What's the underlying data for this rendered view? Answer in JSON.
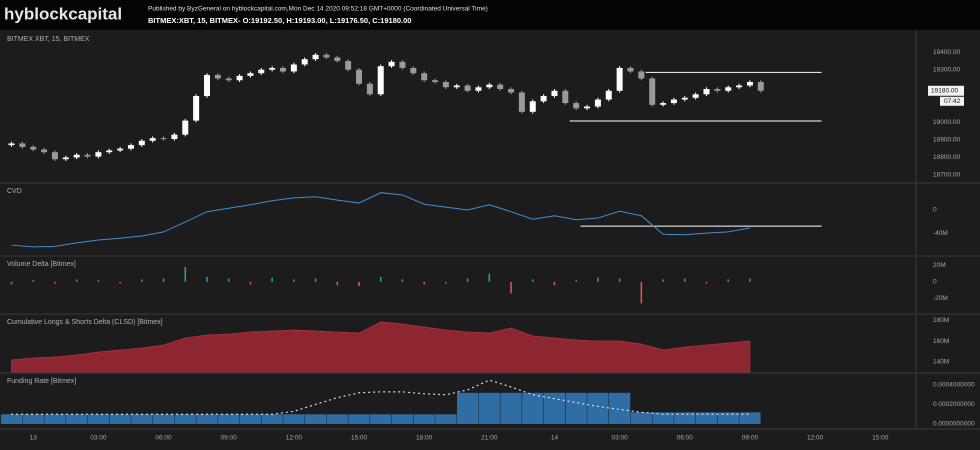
{
  "header": {
    "logo": "hyblockcapital",
    "published": "Published by ByzGeneral on hyblockcapital.com,Mon Dec 14 2020 09:52:18 GMT+0000 (Coordinated Universal Time)",
    "symbol": "BITMEX:XBT, 15, BITMEX- O:19192.50, H:19193.00, L:19176.50, C:19180.00"
  },
  "chart_data": [
    {
      "type": "candlestick",
      "title": "BITMEX XBT, 15, BITMEX",
      "up_color": "#ffffff",
      "down_color": "#9a9a9a",
      "x": [
        -1,
        -0.5,
        0,
        0.5,
        1,
        1.5,
        2,
        2.5,
        3,
        3.5,
        4,
        4.5,
        5,
        5.5,
        6,
        6.5,
        7,
        7.5,
        8,
        8.5,
        9,
        9.5,
        10,
        10.5,
        11,
        11.5,
        12,
        12.5,
        13,
        13.5,
        14,
        14.5,
        15,
        15.5,
        16,
        16.5,
        17,
        17.5,
        18,
        18.5,
        19,
        19.5,
        20,
        20.5,
        21,
        21.5,
        22,
        22.5,
        23,
        23.5,
        24,
        24.5,
        25,
        25.5,
        26,
        26.5,
        27,
        27.5,
        28,
        28.5,
        29,
        29.5,
        30,
        30.5,
        31,
        31.5,
        32,
        32.5,
        33,
        33.5
      ],
      "open": [
        18870,
        18880,
        18860,
        18845,
        18830,
        18790,
        18800,
        18815,
        18805,
        18830,
        18840,
        18850,
        18870,
        18895,
        18910,
        18905,
        18930,
        19010,
        19150,
        19270,
        19250,
        19240,
        19265,
        19280,
        19300,
        19310,
        19290,
        19330,
        19360,
        19385,
        19370,
        19350,
        19300,
        19220,
        19160,
        19320,
        19345,
        19310,
        19280,
        19240,
        19230,
        19200,
        19210,
        19180,
        19200,
        19215,
        19190,
        19170,
        19060,
        19120,
        19150,
        19180,
        19110,
        19080,
        19090,
        19130,
        19180,
        19310,
        19290,
        19250,
        19100,
        19110,
        19130,
        19140,
        19160,
        19190,
        19180,
        19200,
        19210,
        19230
      ],
      "high": [
        18890,
        18890,
        18870,
        18855,
        18840,
        18810,
        18825,
        18825,
        18840,
        18850,
        18860,
        18880,
        18905,
        18920,
        18920,
        18940,
        19020,
        19160,
        19280,
        19280,
        19260,
        19275,
        19290,
        19310,
        19320,
        19320,
        19340,
        19370,
        19395,
        19395,
        19380,
        19360,
        19310,
        19230,
        19330,
        19355,
        19355,
        19320,
        19290,
        19250,
        19240,
        19220,
        19220,
        19210,
        19225,
        19225,
        19200,
        19180,
        19130,
        19160,
        19190,
        19190,
        19120,
        19100,
        19140,
        19190,
        19320,
        19320,
        19300,
        19260,
        19120,
        19140,
        19150,
        19170,
        19200,
        19200,
        19210,
        19220,
        19240,
        19240
      ],
      "low": [
        18860,
        18850,
        18835,
        18820,
        18780,
        18780,
        18790,
        18795,
        18795,
        18820,
        18830,
        18840,
        18860,
        18885,
        18895,
        18895,
        18920,
        19000,
        19140,
        19240,
        19230,
        19230,
        19255,
        19270,
        19290,
        19280,
        19280,
        19320,
        19350,
        19360,
        19340,
        19290,
        19210,
        19150,
        19150,
        19310,
        19300,
        19270,
        19230,
        19220,
        19190,
        19190,
        19170,
        19170,
        19190,
        19180,
        19160,
        19050,
        19050,
        19110,
        19140,
        19100,
        19070,
        19070,
        19080,
        19120,
        19170,
        19280,
        19240,
        19090,
        19090,
        19100,
        19120,
        19130,
        19150,
        19170,
        19170,
        19190,
        19200,
        19170
      ],
      "close": [
        18880,
        18860,
        18845,
        18830,
        18790,
        18800,
        18815,
        18805,
        18830,
        18840,
        18850,
        18870,
        18895,
        18910,
        18905,
        18930,
        19010,
        19150,
        19270,
        19250,
        19240,
        19265,
        19280,
        19300,
        19310,
        19290,
        19330,
        19360,
        19385,
        19370,
        19350,
        19300,
        19220,
        19160,
        19320,
        19345,
        19310,
        19280,
        19240,
        19230,
        19200,
        19210,
        19180,
        19200,
        19215,
        19190,
        19170,
        19060,
        19120,
        19150,
        19180,
        19110,
        19080,
        19090,
        19130,
        19180,
        19310,
        19290,
        19250,
        19100,
        19110,
        19130,
        19140,
        19160,
        19190,
        19180,
        19200,
        19210,
        19230,
        19180
      ],
      "ylim": [
        18660,
        19515
      ],
      "yticks": [
        {
          "value": 19400,
          "label": "19400.00"
        },
        {
          "value": 19300,
          "label": "19300.00"
        },
        {
          "value": 19000,
          "label": "19000.00"
        },
        {
          "value": 18900,
          "label": "18900.00"
        },
        {
          "value": 18800,
          "label": "18800.00"
        },
        {
          "value": 18700,
          "label": "18700.00"
        }
      ],
      "hlines": [
        {
          "value": 19285,
          "x": [
            28.2,
            36.3
          ]
        },
        {
          "value": 19008,
          "x": [
            24.7,
            36.3
          ]
        }
      ],
      "price_label": {
        "value": 19180,
        "label": "19180.00"
      },
      "countdown": "07:42",
      "grid": false
    },
    {
      "type": "line",
      "title": "CVD",
      "color": "#3d8fd6",
      "x": [
        -1,
        0,
        1,
        2,
        3,
        4,
        5,
        6,
        7,
        8,
        9,
        10,
        11,
        12,
        13,
        14,
        15,
        16,
        17,
        18,
        19,
        20,
        21,
        22,
        23,
        24,
        25,
        26,
        27,
        28,
        29,
        30,
        31,
        32,
        33
      ],
      "values": [
        -61000000,
        -64000000,
        -63000000,
        -57000000,
        -52000000,
        -49000000,
        -45000000,
        -38000000,
        -21000000,
        -3000000,
        3000000,
        9000000,
        16000000,
        21000000,
        23000000,
        17000000,
        12000000,
        30000000,
        26000000,
        10000000,
        5000000,
        0,
        9000000,
        -3000000,
        -16000000,
        -10000000,
        -17000000,
        -14000000,
        -2000000,
        -10000000,
        -42000000,
        -43000000,
        -40000000,
        -38000000,
        -31000000
      ],
      "ylim": [
        -78000000,
        45000000
      ],
      "yticks": [
        0,
        {
          "value": -40000000,
          "label": "-40M"
        }
      ],
      "hlines": [
        {
          "value": -28000000,
          "x": [
            25.2,
            36.3
          ]
        }
      ],
      "grid": false
    },
    {
      "type": "bar",
      "title": "Volume Delta [Bitmex]",
      "up_color": "#26a69a",
      "down_color": "#ef5350",
      "x": [
        -1,
        0,
        1,
        2,
        3,
        4,
        5,
        6,
        7,
        8,
        9,
        10,
        11,
        12,
        13,
        14,
        15,
        16,
        17,
        18,
        19,
        20,
        21,
        22,
        23,
        24,
        25,
        26,
        27,
        28,
        29,
        30,
        31,
        32,
        33
      ],
      "values": [
        -3000000,
        2000000,
        -2000000,
        3000000,
        2000000,
        -2000000,
        3000000,
        4000000,
        18000000,
        6000000,
        4000000,
        -3000000,
        5000000,
        3000000,
        4000000,
        -4000000,
        -5000000,
        6000000,
        3000000,
        -3000000,
        -2000000,
        4000000,
        10000000,
        -14000000,
        3000000,
        -4000000,
        2000000,
        5000000,
        4000000,
        -26000000,
        3000000,
        4000000,
        -2000000,
        3000000,
        4000000
      ],
      "ylim": [
        -37600000,
        30000000
      ],
      "yticks": [
        {
          "value": 20000000,
          "label": "20M"
        },
        0,
        {
          "value": -20000000,
          "label": "-20M"
        }
      ],
      "grid": false
    },
    {
      "type": "area",
      "title": "Cumulative Longs & Shorts Delta (CLSD) [Bitmex]",
      "color": "#8e2630",
      "x": [
        -1,
        0,
        1,
        2,
        3,
        4,
        5,
        6,
        7,
        8,
        9,
        10,
        11,
        12,
        13,
        14,
        15,
        16,
        17,
        18,
        19,
        20,
        21,
        22,
        23,
        24,
        25,
        26,
        27,
        28,
        29,
        30,
        31,
        32,
        33
      ],
      "values": [
        141900000,
        143800000,
        144800000,
        146700000,
        149500000,
        151400000,
        153300000,
        156200000,
        162900000,
        165700000,
        166700000,
        168600000,
        169500000,
        170500000,
        169500000,
        168600000,
        167600000,
        178100000,
        176200000,
        173300000,
        170500000,
        168600000,
        167600000,
        172400000,
        164800000,
        162900000,
        161000000,
        160000000,
        160000000,
        157100000,
        151400000,
        154300000,
        156200000,
        158100000,
        160000000
      ],
      "ylim": [
        130500000,
        184800000
      ],
      "yticks": [
        {
          "value": 180000000,
          "label": "180M"
        },
        {
          "value": 160000000,
          "label": "160M"
        },
        {
          "value": 140000000,
          "label": "140M"
        }
      ],
      "grid": false
    },
    {
      "type": "bar",
      "title": "Funding Rate [Bitmex]",
      "color": "#2f6ea5",
      "dots_color": "#e0e0e0",
      "x": [
        -1,
        0,
        1,
        2,
        3,
        4,
        5,
        6,
        7,
        8,
        9,
        10,
        11,
        12,
        13,
        14,
        15,
        16,
        17,
        18,
        19,
        20,
        21,
        22,
        23,
        24,
        25,
        26,
        27,
        28,
        29,
        30,
        31,
        32,
        33
      ],
      "values": [
        0.0001,
        0.0001,
        0.0001,
        0.0001,
        0.0001,
        0.0001,
        0.0001,
        0.0001,
        0.0001,
        0.0001,
        0.0001,
        0.0001,
        0.0001,
        0.0001,
        0.0001,
        0.0001,
        0.0001,
        0.0001,
        0.0001,
        0.0001,
        0.0001,
        0.00032,
        0.00032,
        0.00032,
        0.00032,
        0.00032,
        0.00032,
        0.00032,
        0.00032,
        0.00012,
        0.00012,
        0.00012,
        0.00012,
        0.00012,
        0.00012
      ],
      "dots": [
        0.0001,
        0.0001,
        0.0001,
        0.0001,
        0.0001,
        0.0001,
        0.0001,
        0.0001,
        0.0001,
        0.0001,
        0.0001,
        0.0001,
        0.0001,
        0.00013,
        0.0002,
        0.00027,
        0.00032,
        0.00033,
        0.00033,
        0.00031,
        0.0003,
        0.00035,
        0.00045,
        0.00038,
        0.0003,
        0.00026,
        0.00022,
        0.00018,
        0.00015,
        0.00012,
        0.0001,
        0.0001,
        0.0001,
        0.0001,
        0.0001
      ],
      "ylim": [
        -4.1e-05,
        0.000513
      ],
      "yticks": [
        {
          "value": 0.0004,
          "label": "0.0004000000"
        },
        {
          "value": 0.0002,
          "label": "0.0002000000"
        },
        {
          "value": 0,
          "label": "0.0000000000"
        }
      ],
      "xlim": [
        -1.3,
        40.6
      ],
      "xticks": [
        {
          "value": 0,
          "label": "13"
        },
        {
          "value": 3,
          "label": "03:00"
        },
        {
          "value": 6,
          "label": "06:00"
        },
        {
          "value": 9,
          "label": "09:00"
        },
        {
          "value": 12,
          "label": "12:00"
        },
        {
          "value": 15,
          "label": "15:00"
        },
        {
          "value": 18,
          "label": "18:00"
        },
        {
          "value": 21,
          "label": "21:00"
        },
        {
          "value": 24,
          "label": "14"
        },
        {
          "value": 27,
          "label": "03:00"
        },
        {
          "value": 30,
          "label": "06:00"
        },
        {
          "value": 33,
          "label": "09:00"
        },
        {
          "value": 36,
          "label": "12:00"
        },
        {
          "value": 39,
          "label": "15:00"
        }
      ],
      "grid": false
    }
  ]
}
